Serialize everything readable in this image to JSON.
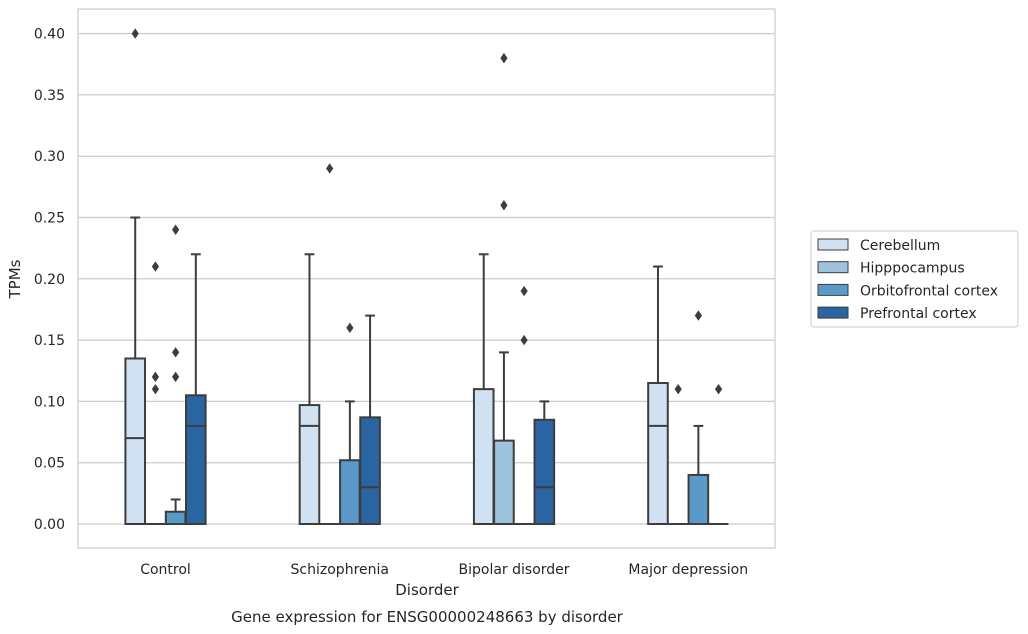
{
  "chart_data": {
    "type": "box",
    "title": "",
    "caption": "Gene expression for ENSG00000248663 by disorder",
    "xlabel": "Disorder",
    "ylabel": "TPMs",
    "ylim": [
      -0.0195,
      0.42
    ],
    "yticks": [
      "0.00",
      "0.05",
      "0.10",
      "0.15",
      "0.20",
      "0.25",
      "0.30",
      "0.35",
      "0.40"
    ],
    "yticks_values": [
      0,
      0.05,
      0.1,
      0.15,
      0.2,
      0.25,
      0.3,
      0.35,
      0.4
    ],
    "grid": "horizontal",
    "legend_position": "right",
    "categories": [
      "Control",
      "Schizophrenia",
      "Bipolar disorder",
      "Major depression"
    ],
    "series": [
      {
        "name": "Cerebellum",
        "color": "#d0e1f2",
        "boxes": [
          {
            "min": 0,
            "q1": 0,
            "median": 0.07,
            "q3": 0.135,
            "max": 0.25,
            "outliers": [
              0.4
            ]
          },
          {
            "min": 0,
            "q1": 0,
            "median": 0.08,
            "q3": 0.097,
            "max": 0.22,
            "outliers": []
          },
          {
            "min": 0,
            "q1": 0,
            "median": 0,
            "q3": 0.11,
            "max": 0.22,
            "outliers": []
          },
          {
            "min": 0,
            "q1": 0,
            "median": 0.08,
            "q3": 0.115,
            "max": 0.21,
            "outliers": []
          }
        ]
      },
      {
        "name": "Hipppocampus",
        "color": "#9dc3dd",
        "boxes": [
          {
            "min": 0,
            "q1": 0,
            "median": 0,
            "q3": 0,
            "max": 0,
            "outliers": [
              0.11,
              0.12,
              0.21
            ]
          },
          {
            "min": 0,
            "q1": 0,
            "median": 0,
            "q3": 0,
            "max": 0,
            "outliers": [
              0.29
            ]
          },
          {
            "min": 0,
            "q1": 0,
            "median": 0,
            "q3": 0.068,
            "max": 0.14,
            "outliers": [
              0.26,
              0.38
            ]
          },
          {
            "min": 0,
            "q1": 0,
            "median": 0,
            "q3": 0,
            "max": 0,
            "outliers": [
              0.11
            ]
          }
        ]
      },
      {
        "name": "Orbitofrontal cortex",
        "color": "#5a9ac8",
        "boxes": [
          {
            "min": 0,
            "q1": 0,
            "median": 0,
            "q3": 0.01,
            "max": 0.02,
            "outliers": [
              0.12,
              0.14,
              0.24
            ]
          },
          {
            "min": 0,
            "q1": 0,
            "median": 0,
            "q3": 0.052,
            "max": 0.1,
            "outliers": [
              0.16
            ]
          },
          {
            "min": 0,
            "q1": 0,
            "median": 0,
            "q3": 0,
            "max": 0,
            "outliers": [
              0.15,
              0.19
            ]
          },
          {
            "min": 0,
            "q1": 0,
            "median": 0,
            "q3": 0.04,
            "max": 0.08,
            "outliers": [
              0.17
            ]
          }
        ]
      },
      {
        "name": "Prefrontal cortex",
        "color": "#2a65a3",
        "boxes": [
          {
            "min": 0,
            "q1": 0,
            "median": 0.08,
            "q3": 0.105,
            "max": 0.22,
            "outliers": []
          },
          {
            "min": 0,
            "q1": 0,
            "median": 0.03,
            "q3": 0.087,
            "max": 0.17,
            "outliers": []
          },
          {
            "min": 0,
            "q1": 0,
            "median": 0.03,
            "q3": 0.085,
            "max": 0.1,
            "outliers": []
          },
          {
            "min": 0,
            "q1": 0,
            "median": 0,
            "q3": 0,
            "max": 0,
            "outliers": [
              0.11
            ]
          }
        ]
      }
    ]
  }
}
